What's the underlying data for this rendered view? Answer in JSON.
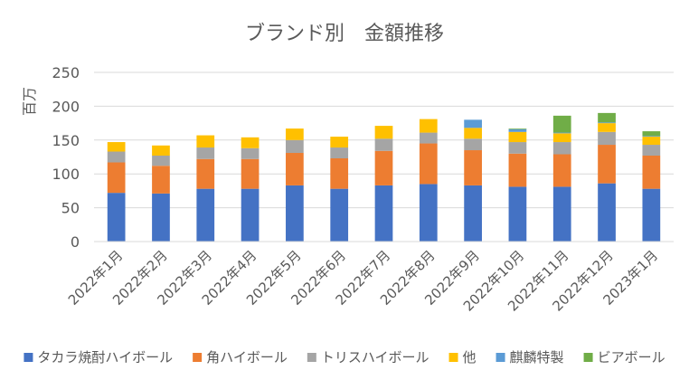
{
  "chart_data": {
    "type": "bar",
    "stacked": true,
    "title": "ブランド別　金額推移",
    "xlabel": "",
    "ylabel": "百万",
    "ylim": [
      0,
      250
    ],
    "yticks": [
      0,
      50,
      100,
      150,
      200,
      250
    ],
    "grid": true,
    "legend": "bottom",
    "categories": [
      "2022年1月",
      "2022年2月",
      "2022年3月",
      "2022年4月",
      "2022年5月",
      "2022年6月",
      "2022年7月",
      "2022年8月",
      "2022年9月",
      "2022年10月",
      "2022年11月",
      "2022年12月",
      "2023年1月"
    ],
    "series": [
      {
        "name": "タカラ焼酎ハイボール",
        "color": "#4472C4",
        "values": [
          72,
          71,
          78,
          78,
          83,
          78,
          83,
          85,
          83,
          81,
          81,
          86,
          78
        ]
      },
      {
        "name": "角ハイボール",
        "color": "#ED7D31",
        "values": [
          45,
          41,
          44,
          44,
          48,
          45,
          51,
          60,
          52,
          49,
          48,
          57,
          49
        ]
      },
      {
        "name": "トリスハイボール",
        "color": "#A5A5A5",
        "values": [
          16,
          15,
          17,
          16,
          19,
          16,
          18,
          16,
          17,
          17,
          18,
          19,
          16
        ]
      },
      {
        "name": "他",
        "color": "#FFC000",
        "values": [
          14,
          15,
          18,
          16,
          17,
          16,
          19,
          20,
          16,
          15,
          13,
          13,
          12
        ]
      },
      {
        "name": "麒麟特製",
        "color": "#5B9BD5",
        "values": [
          0,
          0,
          0,
          0,
          0,
          0,
          0,
          0,
          12,
          4,
          1,
          1,
          1
        ]
      },
      {
        "name": "ビアボール",
        "color": "#70AD47",
        "values": [
          0,
          0,
          0,
          0,
          0,
          0,
          0,
          0,
          0,
          1,
          25,
          14,
          7
        ]
      }
    ]
  }
}
